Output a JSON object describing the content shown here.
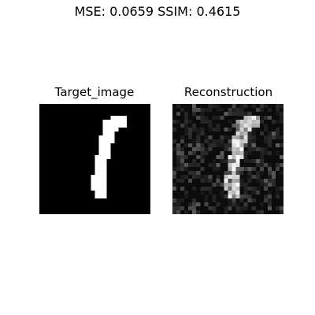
{
  "figure": {
    "title": "MSE: 0.0659  SSIM: 0.4615"
  },
  "panels": [
    {
      "title": "Target_image"
    },
    {
      "title": "Reconstruction"
    }
  ],
  "image_grid": {
    "rows": 28,
    "cols": 28
  },
  "target_mask": [
    "............................",
    "............................",
    "............................",
    "..................####......",
    "................######......",
    "................######......",
    "................####........",
    "................###.........",
    "...............####.........",
    "...............####.........",
    "...............###..........",
    "...............###..........",
    "...............###..........",
    "..............####..........",
    "..............###...........",
    "..............###...........",
    "..............###...........",
    "..............###...........",
    ".............####...........",
    ".............####...........",
    ".............####...........",
    ".............####...........",
    "..............###...........",
    "..............###...........",
    "............................",
    "............................",
    "............................",
    "............................"
  ],
  "colors": {
    "background": "#ffffff",
    "text": "#000000"
  }
}
